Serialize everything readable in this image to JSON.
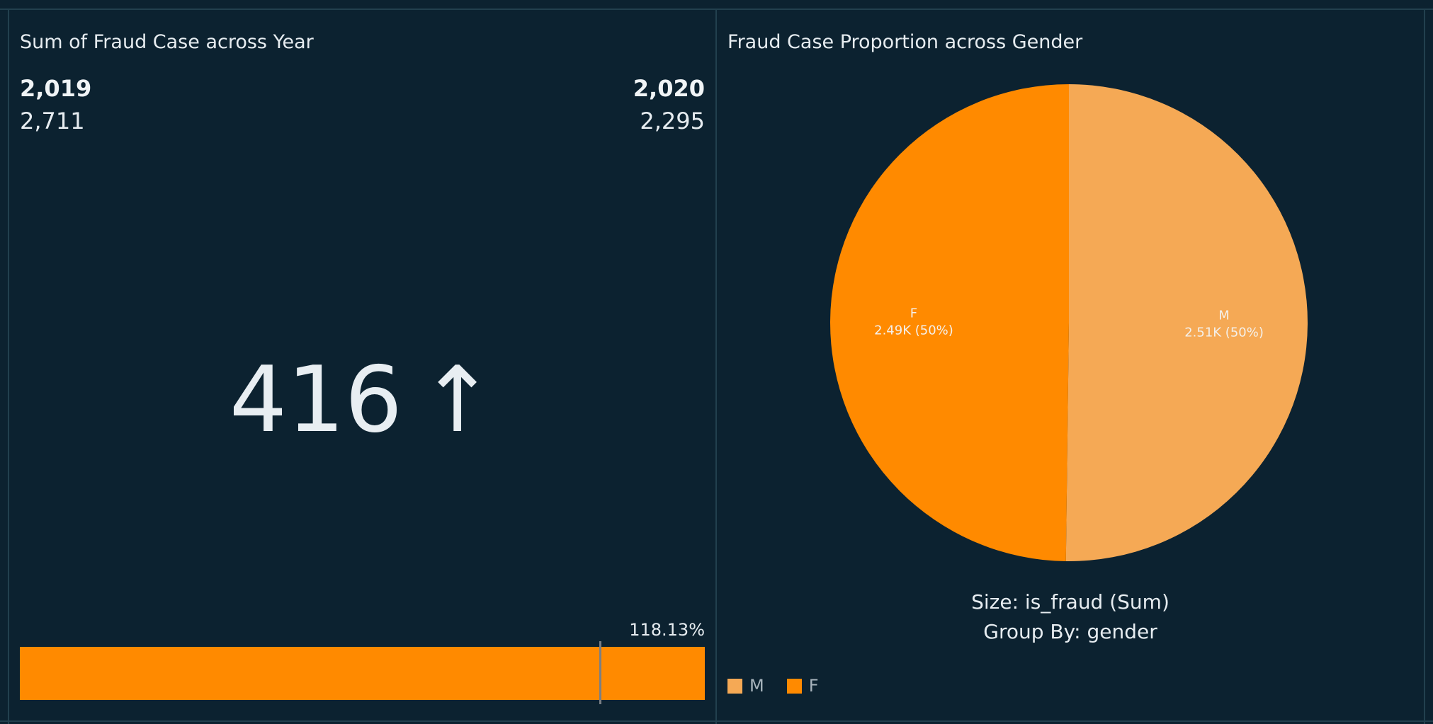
{
  "colors": {
    "background": "#0c2230",
    "accent_orange": "#ff8a00",
    "light_orange": "#f5a955"
  },
  "kpi_panel": {
    "title": "Sum of Fraud Case across Year",
    "left_year": "2,019",
    "left_value": "2,711",
    "right_year": "2,020",
    "right_value": "2,295",
    "difference": "416",
    "arrow": "↑",
    "progress_label": "118.13%",
    "progress_percent": 118.13
  },
  "pie_panel": {
    "title": "Fraud Case Proportion across Gender",
    "caption_size": "Size: is_fraud (Sum)",
    "caption_group": "Group By: gender",
    "legend": [
      "M",
      "F"
    ]
  },
  "chart_data": [
    {
      "type": "bar",
      "title": "Sum of Fraud Case across Year",
      "categories": [
        "2,019",
        "2,020"
      ],
      "values": [
        2711,
        2295
      ],
      "difference": 416,
      "progress_percent": 118.13
    },
    {
      "type": "pie",
      "title": "Fraud Case Proportion across Gender",
      "categories": [
        "M",
        "F"
      ],
      "values": [
        2510,
        2490
      ],
      "value_labels": [
        "2.51K (50%)",
        "2.49K (50%)"
      ],
      "colors": [
        "#f5a955",
        "#ff8a00"
      ],
      "legend_position": "bottom-left"
    }
  ]
}
